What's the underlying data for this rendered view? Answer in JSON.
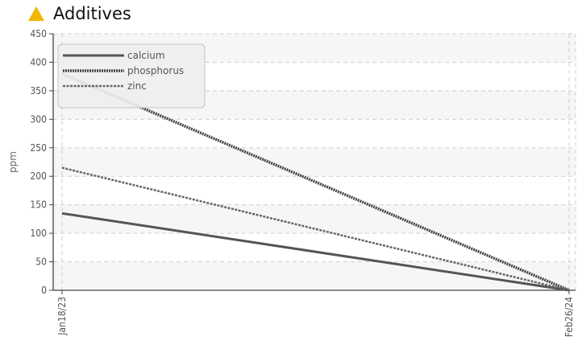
{
  "header": {
    "title": "Additives",
    "icon": "warning-triangle-icon",
    "icon_color": "#f2b705"
  },
  "chart_data": {
    "type": "line",
    "title": "Additives",
    "ylabel": "ppm",
    "xlabel": "",
    "ylim": [
      0,
      450
    ],
    "yticks": [
      0,
      50,
      100,
      150,
      200,
      250,
      300,
      350,
      400,
      450
    ],
    "x": [
      "Jan18/23",
      "Feb26/24"
    ],
    "legend_position": "top-left",
    "grid": true,
    "series": [
      {
        "name": "calcium",
        "values": [
          135,
          0
        ],
        "color": "#555555",
        "style": "solid"
      },
      {
        "name": "phosphorus",
        "values": [
          380,
          0
        ],
        "color": "#444444",
        "style": "dotted"
      },
      {
        "name": "zinc",
        "values": [
          215,
          0
        ],
        "color": "#666666",
        "style": "dashed"
      }
    ]
  }
}
